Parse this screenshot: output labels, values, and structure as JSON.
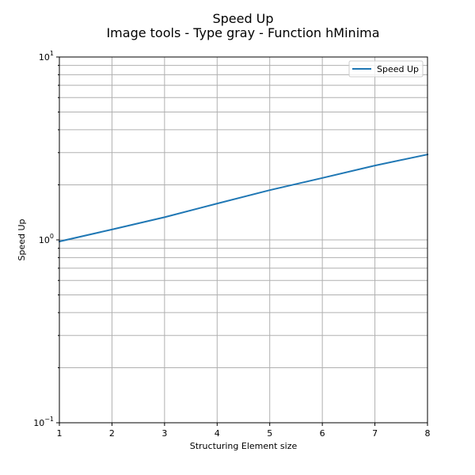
{
  "chart_data": {
    "type": "line",
    "title": "Speed Up",
    "subtitle": "Image tools - Type gray - Function hMinima",
    "xlabel": "Structuring Element size",
    "ylabel": "Speed Up",
    "x": [
      1,
      2,
      3,
      4,
      5,
      6,
      7,
      8
    ],
    "series": [
      {
        "name": "Speed Up",
        "color": "#1f77b4",
        "values": [
          0.98,
          1.14,
          1.33,
          1.58,
          1.87,
          2.18,
          2.55,
          2.93
        ]
      }
    ],
    "xlim": [
      1,
      8
    ],
    "ylim": [
      0.1,
      10
    ],
    "yscale": "log",
    "x_ticks": [
      "1",
      "2",
      "3",
      "4",
      "5",
      "6",
      "7",
      "8"
    ],
    "y_ticks": [
      {
        "base": "10",
        "exp": "−1",
        "value": 0.1
      },
      {
        "base": "10",
        "exp": "0",
        "value": 1
      },
      {
        "base": "10",
        "exp": "1",
        "value": 10
      }
    ],
    "grid": true,
    "legend_position": "top-right"
  }
}
